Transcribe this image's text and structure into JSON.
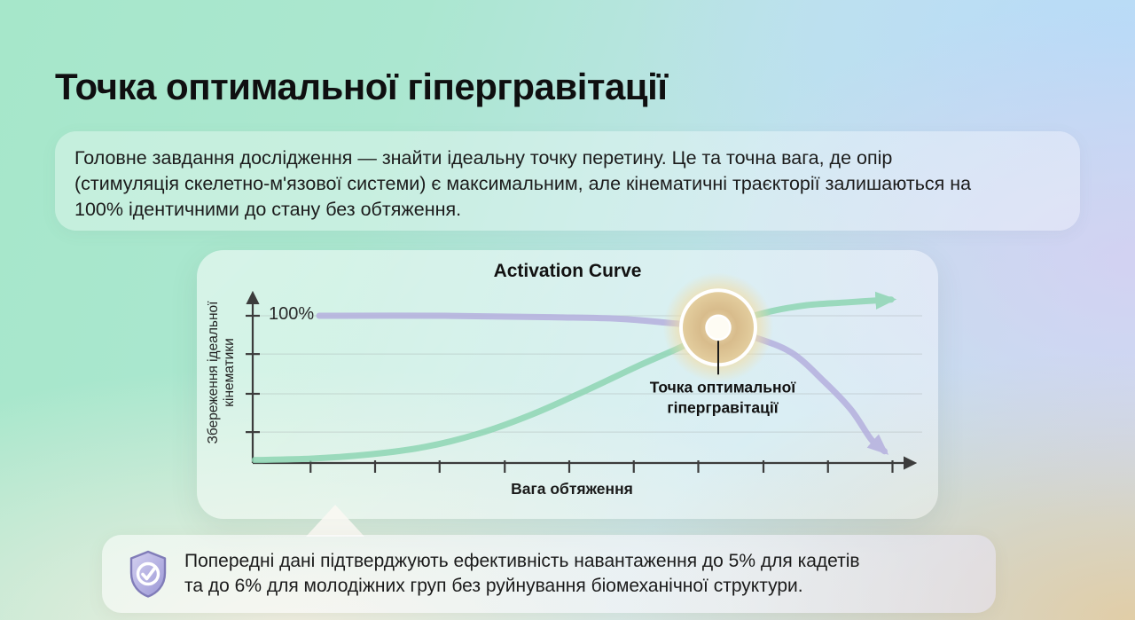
{
  "slide": {
    "title": "Точка оптимальної гіпергравітації",
    "description_lines": [
      "Головне завдання дослідження — знайти ідеальну точку перетину. Це та точна вага, де опір",
      "(стимуляція скелетно-м'язової системи) є максимальним, але кінематичні траєкторії залишаються на",
      "100% ідентичними до стану без обтяження."
    ],
    "note": {
      "icon": "shield-check-icon",
      "lines": [
        "Попередні дані підтверджують ефективність навантаження до 5% для кадетів",
        "та до 6% для молодіжних груп без руйнування біомеханічної структури."
      ]
    }
  },
  "chart_data": {
    "type": "line",
    "title": "Activation Curve",
    "xlabel": "Вага обтяження",
    "ylabel": "Збереження ідеальної кінематики",
    "ylabel_lines": [
      "Збереження ідеальної",
      "кінематики"
    ],
    "y_axis_top_label": "100%",
    "x_range": [
      0,
      10
    ],
    "y_range": [
      0,
      115
    ],
    "grid": true,
    "legend": "none",
    "y_ticks": [
      100,
      74,
      47,
      21
    ],
    "x_ticks": [
      0.87,
      1.84,
      2.81,
      3.79,
      4.76,
      5.73,
      6.7,
      7.68,
      8.65,
      9.62
    ],
    "series": [
      {
        "name": "kinematics-preservation",
        "color": "#b5b0de",
        "x": [
          1,
          2.9,
          4.5,
          5.5,
          6.3,
          7,
          7.5,
          8.1,
          8.6,
          9,
          9.3,
          9.5
        ],
        "y": [
          100,
          100,
          99,
          98,
          95,
          92,
          86,
          75,
          55,
          36,
          16,
          8
        ]
      },
      {
        "name": "muscle-activation",
        "color": "#8fd6b4",
        "x": [
          0.03,
          0.9,
          1.8,
          2.6,
          3.4,
          4.2,
          5,
          5.8,
          6.5,
          7,
          7.7,
          8.3,
          8.9,
          9.6
        ],
        "y": [
          2,
          3,
          6,
          11,
          20,
          33,
          49,
          66,
          80,
          92,
          102,
          107,
          109,
          111
        ]
      }
    ],
    "annotation": {
      "label_lines": [
        "Точка оптимальної",
        "гіпергравітації"
      ],
      "x": 7,
      "y": 92
    },
    "colors": {
      "axis": "#3c3c3c",
      "grid": "#9aa0a0",
      "glow_core": "#d8bc8c",
      "glow_halo": "#f1dda8",
      "point_center": "#fefcf4"
    }
  }
}
